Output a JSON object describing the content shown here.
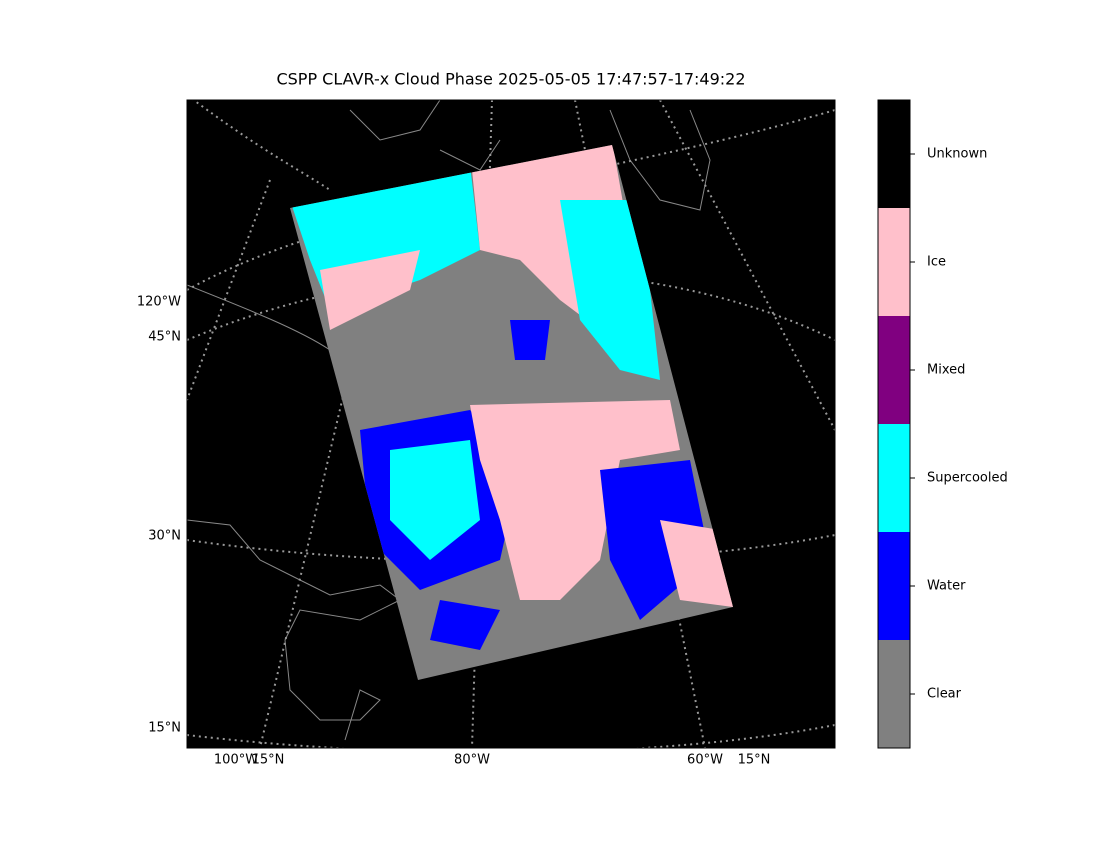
{
  "title": "CSPP CLAVR-x Cloud Phase 2025-05-05 17:47:57-17:49:22",
  "map": {
    "left_labels": [
      "120°W",
      "45°N",
      "30°N",
      "15°N"
    ],
    "bottom_labels": [
      "100°W",
      "15°N",
      "80°W",
      "60°W",
      "15°N"
    ]
  },
  "colorbar": {
    "classes": [
      {
        "label": "Clear",
        "color": "#808080"
      },
      {
        "label": "Water",
        "color": "#0000ff"
      },
      {
        "label": "Supercooled",
        "color": "#00ffff"
      },
      {
        "label": "Mixed",
        "color": "#800080"
      },
      {
        "label": "Ice",
        "color": "#ffc0cb"
      },
      {
        "label": "Unknown",
        "color": "#000000"
      }
    ]
  }
}
